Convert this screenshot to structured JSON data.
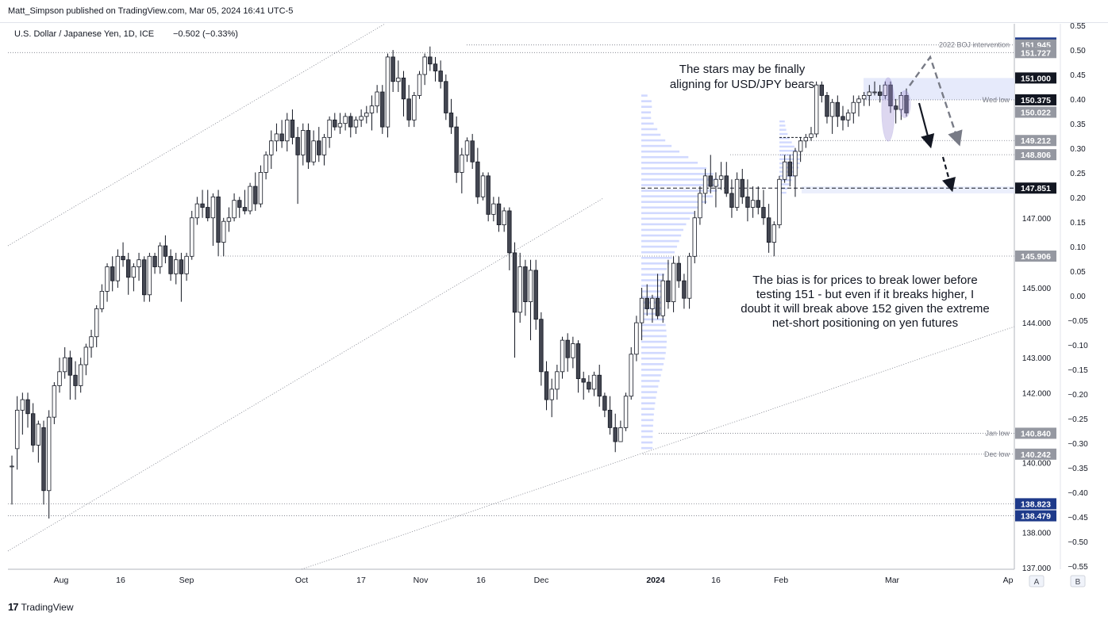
{
  "header": {
    "attribution": "Matt_Simpson published on TradingView.com, Mar 05, 2024 16:41 UTC-5"
  },
  "footer": {
    "logo_mark": "17",
    "logo_text": "TradingView"
  },
  "chart_data": {
    "type": "candlestick",
    "title": "U.S. Dollar / Japanese Yen, 1D, ICE",
    "change_text": "−0.502 (−0.33%)",
    "price_axis_ticks": [
      "145.000",
      "144.000",
      "143.000",
      "142.000",
      "140.000",
      "138.000",
      "137.000",
      "147.000"
    ],
    "percent_axis_ticks": [
      "0.55",
      "0.50",
      "0.45",
      "0.40",
      "0.35",
      "0.30",
      "0.25",
      "0.20",
      "0.15",
      "0.10",
      "0.05",
      "0.00",
      "−0.05",
      "−0.10",
      "−0.15",
      "−0.20",
      "−0.25",
      "−0.30",
      "−0.35",
      "−0.40",
      "−0.45",
      "−0.50",
      "−0.55"
    ],
    "time_axis_ticks": [
      "Aug",
      "16",
      "Sep",
      "Oct",
      "17",
      "Nov",
      "16",
      "Dec",
      "2024",
      "16",
      "Feb",
      "Mar",
      "Ap"
    ],
    "price_labels": [
      {
        "value": 152.0,
        "text": "152.000",
        "style": "blue"
      },
      {
        "value": 151.945,
        "text": "151.945",
        "style": "gray"
      },
      {
        "value": 151.727,
        "text": "151.727",
        "style": "gray"
      },
      {
        "value": 151.0,
        "text": "151.000",
        "style": "black"
      },
      {
        "value": 150.375,
        "text": "150.375",
        "style": "black"
      },
      {
        "value": 150.022,
        "text": "150.022",
        "style": "gray"
      },
      {
        "value": 149.212,
        "text": "149.212",
        "style": "gray"
      },
      {
        "value": 148.806,
        "text": "148.806",
        "style": "gray"
      },
      {
        "value": 147.851,
        "text": "147.851",
        "style": "black"
      },
      {
        "value": 145.906,
        "text": "145.906",
        "style": "gray"
      },
      {
        "value": 140.84,
        "text": "140.840",
        "style": "gray"
      },
      {
        "value": 140.242,
        "text": "140.242",
        "style": "gray"
      },
      {
        "value": 138.823,
        "text": "138.823",
        "style": "blue"
      },
      {
        "value": 138.479,
        "text": "138.479",
        "style": "blue"
      }
    ],
    "level_tags": [
      {
        "value": 151.945,
        "text": "2022 BOJ intervention"
      },
      {
        "value": 150.375,
        "text": "Wed low"
      },
      {
        "value": 140.84,
        "text": "Jan low"
      },
      {
        "value": 140.242,
        "text": "Dec low"
      }
    ],
    "annotations": [
      {
        "id": "stars",
        "lines": [
          "The stars may be finally",
          "aligning for USD/JPY bears"
        ]
      },
      {
        "id": "bias",
        "lines": [
          "The bias is for prices to break lower before",
          "testing 151 - but even if it breaks higher, I",
          "doubt it will break above 152 given the extreme",
          "net-short positioning on yen futures"
        ]
      }
    ],
    "scale_buttons": [
      "A",
      "B"
    ],
    "price_range": [
      136.95,
      152.55
    ],
    "ohlc": [
      [
        139.9,
        140.2,
        138.8,
        139.9
      ],
      [
        140.4,
        141.9,
        139.8,
        141.5
      ],
      [
        141.5,
        142.0,
        140.8,
        141.8
      ],
      [
        141.8,
        142.0,
        141.0,
        141.4
      ],
      [
        141.4,
        141.7,
        140.3,
        140.5
      ],
      [
        140.5,
        141.2,
        140.0,
        141.1
      ],
      [
        141.0,
        141.2,
        138.8,
        139.2
      ],
      [
        139.2,
        141.5,
        138.4,
        141.3
      ],
      [
        141.3,
        142.3,
        141.1,
        142.2
      ],
      [
        142.2,
        143.0,
        142.0,
        142.6
      ],
      [
        142.6,
        143.3,
        142.4,
        143.0
      ],
      [
        143.0,
        143.2,
        141.8,
        142.5
      ],
      [
        142.5,
        142.9,
        141.8,
        142.2
      ],
      [
        142.2,
        143.0,
        142.0,
        142.8
      ],
      [
        142.8,
        143.4,
        142.5,
        143.3
      ],
      [
        143.3,
        143.8,
        143.0,
        143.6
      ],
      [
        143.6,
        144.5,
        143.3,
        144.4
      ],
      [
        144.4,
        145.1,
        144.3,
        144.9
      ],
      [
        144.9,
        145.7,
        144.6,
        145.6
      ],
      [
        145.6,
        145.9,
        144.9,
        145.2
      ],
      [
        145.2,
        146.1,
        145.0,
        145.9
      ],
      [
        145.9,
        146.3,
        145.6,
        145.8
      ],
      [
        145.8,
        146.0,
        144.8,
        145.3
      ],
      [
        145.3,
        145.7,
        144.9,
        145.6
      ],
      [
        145.6,
        146.0,
        145.2,
        145.8
      ],
      [
        145.8,
        145.9,
        144.6,
        144.8
      ],
      [
        144.8,
        146.0,
        144.6,
        145.9
      ],
      [
        145.9,
        146.0,
        145.4,
        145.6
      ],
      [
        145.6,
        146.3,
        145.4,
        146.2
      ],
      [
        146.2,
        146.5,
        145.7,
        145.9
      ],
      [
        145.9,
        146.1,
        145.2,
        145.4
      ],
      [
        145.4,
        146.0,
        145.1,
        145.8
      ],
      [
        145.8,
        146.0,
        144.6,
        145.4
      ],
      [
        145.4,
        146.0,
        145.2,
        145.9
      ],
      [
        145.9,
        147.2,
        145.8,
        147.0
      ],
      [
        147.0,
        147.6,
        146.8,
        147.4
      ],
      [
        147.4,
        147.8,
        147.0,
        147.3
      ],
      [
        147.3,
        147.8,
        146.9,
        147.0
      ],
      [
        147.0,
        147.7,
        146.2,
        147.6
      ],
      [
        147.6,
        147.8,
        145.9,
        146.3
      ],
      [
        146.3,
        147.0,
        145.9,
        146.9
      ],
      [
        146.9,
        147.3,
        146.6,
        147.0
      ],
      [
        147.0,
        147.7,
        146.9,
        147.5
      ],
      [
        147.5,
        147.6,
        147.0,
        147.3
      ],
      [
        147.3,
        147.8,
        147.1,
        147.2
      ],
      [
        147.2,
        148.0,
        147.1,
        147.9
      ],
      [
        147.9,
        148.3,
        147.2,
        147.4
      ],
      [
        147.4,
        148.5,
        147.3,
        148.3
      ],
      [
        148.3,
        148.9,
        148.1,
        148.8
      ],
      [
        148.8,
        149.5,
        148.4,
        149.2
      ],
      [
        149.2,
        149.7,
        148.9,
        149.4
      ],
      [
        149.4,
        149.8,
        149.0,
        149.2
      ],
      [
        149.2,
        150.0,
        148.9,
        149.8
      ],
      [
        149.8,
        150.1,
        149.1,
        149.3
      ],
      [
        149.3,
        149.6,
        147.4,
        148.8
      ],
      [
        148.8,
        149.7,
        148.5,
        149.5
      ],
      [
        149.5,
        149.7,
        148.4,
        148.6
      ],
      [
        148.6,
        149.5,
        148.5,
        149.2
      ],
      [
        149.2,
        149.6,
        148.6,
        148.8
      ],
      [
        148.8,
        149.4,
        148.5,
        149.3
      ],
      [
        149.3,
        149.9,
        149.0,
        149.8
      ],
      [
        149.8,
        150.0,
        149.5,
        149.6
      ],
      [
        149.6,
        150.0,
        149.4,
        149.7
      ],
      [
        149.7,
        150.0,
        149.5,
        149.9
      ],
      [
        149.9,
        150.0,
        149.3,
        149.6
      ],
      [
        149.6,
        149.9,
        149.4,
        149.8
      ],
      [
        149.8,
        150.1,
        149.6,
        149.9
      ],
      [
        149.9,
        150.2,
        149.7,
        150.0
      ],
      [
        150.0,
        150.5,
        149.5,
        150.2
      ],
      [
        150.2,
        150.8,
        150.0,
        150.6
      ],
      [
        150.6,
        150.8,
        149.4,
        149.6
      ],
      [
        149.6,
        151.7,
        149.3,
        151.6
      ],
      [
        151.6,
        151.8,
        150.6,
        150.9
      ],
      [
        150.9,
        151.5,
        150.6,
        151.0
      ],
      [
        151.0,
        151.2,
        149.9,
        150.4
      ],
      [
        150.4,
        150.8,
        149.6,
        149.8
      ],
      [
        149.8,
        150.6,
        149.6,
        150.5
      ],
      [
        150.5,
        151.2,
        150.4,
        151.1
      ],
      [
        151.1,
        151.7,
        150.8,
        151.6
      ],
      [
        151.6,
        151.9,
        151.2,
        151.4
      ],
      [
        151.4,
        151.6,
        150.9,
        151.2
      ],
      [
        151.2,
        151.5,
        150.7,
        150.9
      ],
      [
        150.9,
        151.1,
        149.8,
        150.0
      ],
      [
        150.0,
        150.4,
        149.4,
        149.6
      ],
      [
        149.6,
        149.9,
        148.0,
        148.3
      ],
      [
        148.3,
        149.0,
        147.7,
        148.8
      ],
      [
        148.8,
        149.3,
        148.6,
        149.2
      ],
      [
        149.2,
        149.4,
        148.4,
        148.6
      ],
      [
        148.6,
        149.0,
        147.4,
        147.6
      ],
      [
        147.6,
        148.3,
        147.5,
        148.2
      ],
      [
        148.2,
        148.3,
        146.9,
        147.1
      ],
      [
        147.1,
        147.6,
        146.9,
        147.4
      ],
      [
        147.4,
        147.6,
        146.6,
        146.8
      ],
      [
        146.8,
        147.3,
        146.6,
        147.2
      ],
      [
        147.2,
        147.3,
        145.5,
        146.0
      ],
      [
        146.0,
        146.3,
        143.0,
        144.3
      ],
      [
        144.3,
        146.0,
        144.0,
        145.6
      ],
      [
        145.6,
        145.8,
        144.2,
        144.6
      ],
      [
        144.6,
        145.8,
        143.5,
        145.5
      ],
      [
        145.5,
        145.8,
        143.8,
        144.1
      ],
      [
        144.1,
        144.3,
        142.2,
        142.6
      ],
      [
        142.6,
        142.9,
        141.5,
        141.8
      ],
      [
        141.8,
        142.4,
        141.3,
        142.1
      ],
      [
        142.1,
        142.8,
        141.8,
        142.6
      ],
      [
        142.6,
        143.6,
        142.4,
        143.5
      ],
      [
        143.5,
        143.7,
        142.6,
        143.0
      ],
      [
        143.0,
        143.6,
        142.7,
        143.4
      ],
      [
        143.4,
        143.5,
        142.0,
        142.4
      ],
      [
        142.4,
        142.6,
        141.8,
        142.3
      ],
      [
        142.3,
        142.5,
        142.0,
        142.1
      ],
      [
        142.1,
        142.6,
        141.9,
        142.5
      ],
      [
        142.5,
        142.8,
        141.6,
        141.9
      ],
      [
        141.9,
        142.0,
        141.3,
        141.5
      ],
      [
        141.5,
        141.9,
        140.8,
        141.0
      ],
      [
        141.0,
        141.4,
        140.3,
        140.6
      ],
      [
        140.6,
        141.2,
        140.6,
        141.0
      ],
      [
        141.0,
        142.0,
        140.9,
        141.9
      ],
      [
        141.9,
        143.3,
        141.8,
        143.1
      ],
      [
        143.1,
        144.2,
        142.9,
        144.0
      ],
      [
        144.0,
        145.0,
        143.5,
        144.7
      ],
      [
        144.7,
        145.1,
        144.2,
        144.4
      ],
      [
        144.4,
        144.8,
        144.0,
        144.7
      ],
      [
        144.7,
        145.4,
        144.1,
        144.2
      ],
      [
        144.2,
        145.4,
        144.0,
        145.2
      ],
      [
        145.2,
        145.8,
        144.4,
        144.6
      ],
      [
        144.6,
        145.9,
        144.3,
        145.7
      ],
      [
        145.7,
        145.9,
        145.0,
        145.2
      ],
      [
        145.2,
        145.4,
        144.4,
        144.7
      ],
      [
        144.7,
        146.0,
        144.4,
        145.9
      ],
      [
        145.9,
        147.2,
        145.7,
        147.0
      ],
      [
        147.0,
        147.9,
        146.8,
        147.7
      ],
      [
        147.7,
        148.4,
        147.4,
        148.2
      ],
      [
        148.2,
        148.8,
        147.7,
        147.9
      ],
      [
        147.9,
        148.3,
        147.3,
        148.1
      ],
      [
        148.1,
        148.6,
        147.8,
        148.2
      ],
      [
        148.2,
        148.6,
        147.6,
        147.7
      ],
      [
        147.7,
        148.1,
        147.0,
        147.3
      ],
      [
        147.3,
        148.3,
        147.2,
        148.1
      ],
      [
        148.1,
        148.4,
        147.4,
        147.6
      ],
      [
        147.6,
        148.1,
        146.9,
        147.3
      ],
      [
        147.3,
        147.9,
        147.0,
        147.5
      ],
      [
        147.5,
        147.9,
        147.1,
        147.3
      ],
      [
        147.3,
        147.8,
        146.8,
        147.0
      ],
      [
        147.0,
        147.4,
        146.0,
        146.3
      ],
      [
        146.3,
        146.9,
        145.9,
        146.8
      ],
      [
        146.8,
        148.2,
        146.7,
        148.1
      ],
      [
        148.1,
        148.8,
        148.0,
        148.6
      ],
      [
        148.6,
        148.8,
        147.9,
        148.2
      ],
      [
        148.2,
        149.0,
        147.6,
        148.9
      ],
      [
        148.9,
        149.3,
        148.6,
        149.2
      ],
      [
        149.2,
        149.4,
        149.0,
        149.3
      ],
      [
        149.3,
        149.6,
        149.2,
        149.4
      ],
      [
        149.4,
        150.9,
        149.3,
        150.8
      ],
      [
        150.8,
        150.9,
        150.3,
        150.5
      ],
      [
        150.5,
        150.6,
        149.7,
        149.9
      ],
      [
        149.9,
        150.4,
        149.4,
        150.3
      ],
      [
        150.3,
        150.5,
        149.6,
        149.9
      ],
      [
        149.9,
        150.2,
        149.5,
        149.8
      ],
      [
        149.8,
        150.1,
        149.6,
        150.0
      ],
      [
        150.0,
        150.5,
        149.7,
        150.3
      ],
      [
        150.3,
        150.5,
        149.9,
        150.4
      ],
      [
        150.4,
        150.6,
        150.2,
        150.5
      ],
      [
        150.5,
        150.8,
        150.2,
        150.6
      ],
      [
        150.6,
        150.9,
        150.5,
        150.6
      ],
      [
        150.6,
        150.8,
        150.3,
        150.5
      ],
      [
        150.5,
        150.9,
        150.4,
        150.8
      ],
      [
        150.8,
        150.9,
        150.0,
        150.2
      ],
      [
        150.2,
        150.4,
        149.7,
        150.1
      ],
      [
        150.1,
        150.6,
        149.8,
        150.5
      ],
      [
        150.5,
        150.7,
        149.9,
        150.0
      ]
    ]
  }
}
